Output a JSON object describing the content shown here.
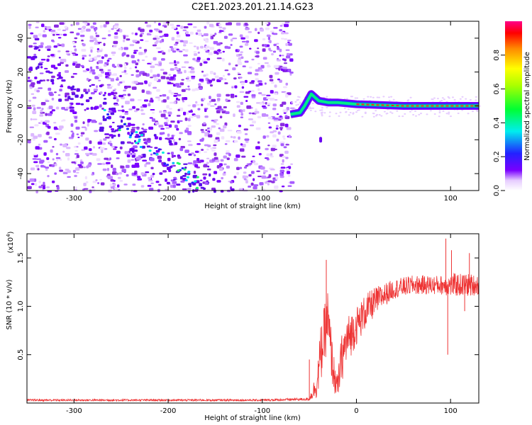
{
  "title": "C2E1.2023.201.21.14.G23",
  "chart_data": [
    {
      "type": "heatmap",
      "xlabel": "Height of straight line (km)",
      "ylabel": "Frequency (Hz)",
      "xlim": [
        -350,
        130
      ],
      "ylim": [
        -50,
        50
      ],
      "x_ticks": [
        -300,
        -200,
        -100,
        0,
        100
      ],
      "x_tick_labels": [
        "-300",
        "-200",
        "-100",
        "0",
        "100"
      ],
      "y_ticks": [
        -40,
        -20,
        0,
        20,
        40
      ],
      "y_tick_labels": [
        "-40",
        "-20",
        "0",
        "20",
        "40"
      ],
      "colorbar": {
        "label": "Normalized spectral amplitude",
        "range": [
          0,
          1
        ],
        "ticks": [
          0.0,
          0.2,
          0.4,
          0.6,
          0.8
        ],
        "tick_labels": [
          "0.0",
          "0.2",
          "0.4",
          "0.6",
          "0.8"
        ]
      },
      "features": {
        "noise_region_x": [
          -350,
          -70
        ],
        "diagonal_track": {
          "from": [
            -350,
            30
          ],
          "to": [
            -170,
            -45
          ]
        },
        "signal_line": [
          [
            -70,
            -5
          ],
          [
            -60,
            -4
          ],
          [
            -55,
            0
          ],
          [
            -48,
            7
          ],
          [
            -40,
            3
          ],
          [
            -30,
            2
          ],
          [
            -20,
            2
          ],
          [
            0,
            1
          ],
          [
            50,
            0
          ],
          [
            130,
            0
          ]
        ],
        "isolated_blob": [
          -38,
          -20
        ]
      }
    },
    {
      "type": "line",
      "xlabel": "Height of straight line (km)",
      "ylabel": "SNR (10 * v/v)",
      "y_multiplier": "(x10",
      "y_multiplier_exp": "4",
      "y_multiplier_close": ")",
      "xlim": [
        -350,
        130
      ],
      "ylim": [
        0,
        1.75
      ],
      "x_ticks": [
        -300,
        -200,
        -100,
        0,
        100
      ],
      "x_tick_labels": [
        "-300",
        "-200",
        "-100",
        "0",
        "100"
      ],
      "y_ticks": [
        0.5,
        1.0,
        1.5
      ],
      "y_tick_labels": [
        "0.5",
        "1.0",
        "1.5"
      ],
      "color": "#ee3333",
      "envelope": {
        "x": [
          -350,
          -100,
          -50,
          -42,
          -38,
          -34,
          -31,
          -28,
          -24,
          -20,
          -16,
          -10,
          0,
          10,
          20,
          30,
          40,
          50,
          60,
          70,
          80,
          90,
          100,
          110,
          120,
          130
        ],
        "y": [
          0.03,
          0.03,
          0.04,
          0.2,
          0.5,
          0.7,
          0.9,
          0.6,
          0.3,
          0.15,
          0.45,
          0.65,
          0.8,
          0.95,
          1.05,
          1.12,
          1.18,
          1.2,
          1.22,
          1.22,
          1.22,
          1.22,
          1.22,
          1.22,
          1.22,
          1.22
        ],
        "noise": [
          0.01,
          0.01,
          0.015,
          0.15,
          0.3,
          0.3,
          0.35,
          0.3,
          0.2,
          0.12,
          0.25,
          0.25,
          0.2,
          0.18,
          0.15,
          0.12,
          0.1,
          0.1,
          0.1,
          0.1,
          0.1,
          0.1,
          0.12,
          0.12,
          0.12,
          0.1
        ]
      },
      "spikes": [
        [
          -32,
          1.48
        ],
        [
          -50,
          0.45
        ],
        [
          95,
          1.7
        ],
        [
          97,
          0.5
        ],
        [
          101,
          1.58
        ],
        [
          120,
          1.55
        ],
        [
          115,
          0.95
        ]
      ]
    }
  ]
}
